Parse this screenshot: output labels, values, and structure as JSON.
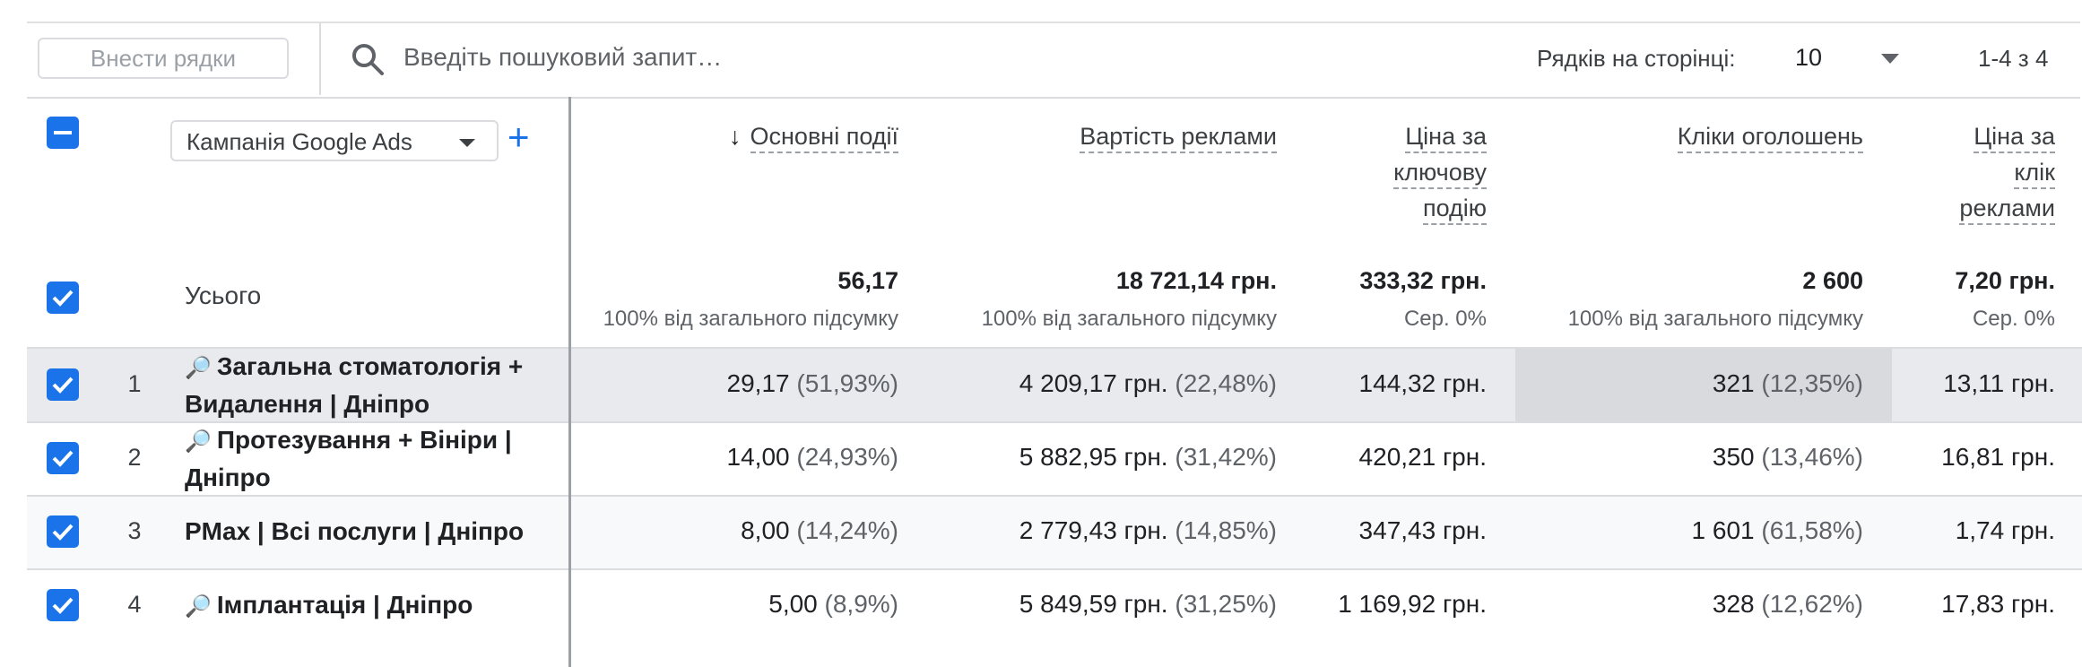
{
  "toolbar": {
    "add_rows_label": "Внести рядки",
    "search_placeholder": "Введіть пошуковий запит…",
    "rows_per_page_label": "Рядків на сторінці:",
    "rows_per_page_value": "10",
    "pagination": "1-4 з 4"
  },
  "dimension": {
    "label": "Кампанія Google Ads",
    "add_icon": "+"
  },
  "columns": [
    {
      "id": "key_events",
      "lines": [
        "Основні події"
      ],
      "sorted": "desc",
      "sort_icon": "↓"
    },
    {
      "id": "ad_cost",
      "lines": [
        "Вартість реклами"
      ]
    },
    {
      "id": "cost_per_key_event",
      "lines": [
        "Ціна за",
        "ключову",
        "подію"
      ]
    },
    {
      "id": "ad_clicks",
      "lines": [
        "Кліки оголошень"
      ]
    },
    {
      "id": "cost_per_click",
      "lines": [
        "Ціна за",
        "клік",
        "реклами"
      ]
    }
  ],
  "totals": {
    "label": "Усього",
    "values": [
      "56,17",
      "18 721,14 грн.",
      "333,32 грн.",
      "2 600",
      "7,20 грн."
    ],
    "subs": [
      "100% від загального підсумку",
      "100% від загального підсумку",
      "Сер. 0%",
      "100% від загального підсумку",
      "Сер. 0%"
    ]
  },
  "rows": [
    {
      "num": "1",
      "search_icon": true,
      "name_lines": [
        "Загальна стоматологія +",
        "Видалення | Дніпро"
      ],
      "key_events": "29,17",
      "key_events_pct": "(51,93%)",
      "ad_cost": "4 209,17 грн.",
      "ad_cost_pct": "(22,48%)",
      "cpke": "144,32 грн.",
      "clicks": "321",
      "clicks_pct": "(12,35%)",
      "cpc": "13,11 грн."
    },
    {
      "num": "2",
      "search_icon": true,
      "name_lines": [
        "Протезування + Вініри |",
        "Дніпро"
      ],
      "key_events": "14,00",
      "key_events_pct": "(24,93%)",
      "ad_cost": "5 882,95 грн.",
      "ad_cost_pct": "(31,42%)",
      "cpke": "420,21 грн.",
      "clicks": "350",
      "clicks_pct": "(13,46%)",
      "cpc": "16,81 грн."
    },
    {
      "num": "3",
      "search_icon": false,
      "name_lines": [
        "PMax | Всі послуги | Дніпро"
      ],
      "key_events": "8,00",
      "key_events_pct": "(14,24%)",
      "ad_cost": "2 779,43 грн.",
      "ad_cost_pct": "(14,85%)",
      "cpke": "347,43 грн.",
      "clicks": "1 601",
      "clicks_pct": "(61,58%)",
      "cpc": "1,74 грн."
    },
    {
      "num": "4",
      "search_icon": true,
      "name_lines": [
        "Імплантація | Дніпро"
      ],
      "key_events": "5,00",
      "key_events_pct": "(8,9%)",
      "ad_cost": "5 849,59 грн.",
      "ad_cost_pct": "(31,25%)",
      "cpke": "1 169,92 грн.",
      "clicks": "328",
      "clicks_pct": "(12,62%)",
      "cpc": "17,83 грн."
    }
  ],
  "colors": {
    "accent": "#1a73e8",
    "row_highlight": "#e8eaed",
    "cell_highlight": "#d9dadd",
    "alt_row": "#f8f9fa"
  }
}
